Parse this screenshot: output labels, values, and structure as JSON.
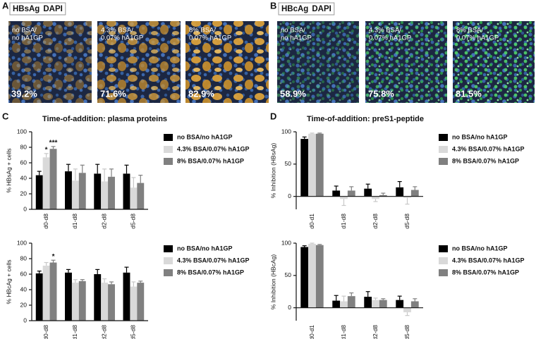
{
  "panel_labels": [
    "A",
    "B",
    "C",
    "D"
  ],
  "images": [
    {
      "stain": "HBsAg",
      "counterstain": "DAPI",
      "stain_color": "#d9822b",
      "counterstain_color": "#2f6db3",
      "fields": [
        {
          "condition": [
            "no BSA/",
            "no hA1GP"
          ],
          "percent": "39.2%"
        },
        {
          "condition": [
            "4.3% BSA/",
            "0.07% hA1GP"
          ],
          "percent": "71.6%"
        },
        {
          "condition": [
            "8% BSA/",
            "0.07% hA1GP"
          ],
          "percent": "82.9%"
        }
      ]
    },
    {
      "stain": "HBcAg",
      "counterstain": "DAPI",
      "stain_color": "#2ca54c",
      "counterstain_color": "#2f6db3",
      "fields": [
        {
          "condition": [
            "no BSA/",
            "no hA1GP"
          ],
          "percent": "58.9%"
        },
        {
          "condition": [
            "4.3% BSA/",
            "0.07% hA1GP"
          ],
          "percent": "75.8%"
        },
        {
          "condition": [
            "8% BSA/",
            "0.07% hA1GP"
          ],
          "percent": "81.5%"
        }
      ]
    }
  ],
  "chart_data": [
    {
      "type": "bar",
      "title": "Time-of-addition: plasma proteins",
      "ylabel": "% HBsAg + cells",
      "categories": [
        "d0-d8",
        "d1-d8",
        "d2-d8",
        "d5-d8"
      ],
      "ylim": [
        0,
        100
      ],
      "yticks": [
        0,
        20,
        40,
        60,
        80,
        100
      ],
      "series": [
        {
          "name": "no BSA/no hA1GP",
          "color": "#000000",
          "values": [
            44,
            49,
            46,
            46
          ],
          "errors": [
            5,
            9,
            12,
            11
          ]
        },
        {
          "name": "4.3% BSA/0.07% hA1GP",
          "color": "#d9d9d9",
          "values": [
            67,
            37,
            36,
            28
          ],
          "errors": [
            5,
            15,
            16,
            13
          ],
          "significance": [
            "*",
            null,
            null,
            null
          ]
        },
        {
          "name": "8% BSA/0.07% hA1GP",
          "color": "#808080",
          "values": [
            78,
            47,
            42,
            34
          ],
          "errors": [
            3,
            10,
            10,
            10
          ],
          "significance": [
            "***",
            null,
            null,
            null
          ]
        }
      ]
    },
    {
      "type": "bar",
      "ylabel": "% HBcAg + cells",
      "categories": [
        "d0-d8",
        "d1-d8",
        "d2-d8",
        "d5-d8"
      ],
      "ylim": [
        0,
        100
      ],
      "yticks": [
        0,
        20,
        40,
        60,
        80,
        100
      ],
      "series": [
        {
          "name": "no BSA/no hA1GP",
          "color": "#000000",
          "values": [
            61,
            62,
            60,
            62
          ],
          "errors": [
            3,
            4,
            6,
            7
          ]
        },
        {
          "name": "4.3% BSA/0.07% hA1GP",
          "color": "#d9d9d9",
          "values": [
            71,
            49,
            49,
            44
          ],
          "errors": [
            4,
            4,
            5,
            6
          ]
        },
        {
          "name": "8% BSA/0.07% hA1GP",
          "color": "#808080",
          "values": [
            75,
            51,
            47,
            49
          ],
          "errors": [
            3,
            2,
            3,
            2
          ],
          "significance": [
            "*",
            null,
            null,
            null
          ]
        }
      ]
    },
    {
      "type": "bar",
      "title": "Time-of-addition: preS1-peptide",
      "ylabel": "% Inhibition (HBsAg)",
      "categories": [
        "d0-d1",
        "d1-d8",
        "d2-d8",
        "d5-d8"
      ],
      "ylim": [
        -20,
        100
      ],
      "yticks": [
        0,
        50,
        100
      ],
      "series": [
        {
          "name": "no BSA/no hA1GP",
          "color": "#000000",
          "values": [
            89,
            9,
            12,
            14
          ],
          "errors": [
            3,
            7,
            7,
            9
          ]
        },
        {
          "name": "4.3% BSA/0.07% hA1GP",
          "color": "#d9d9d9",
          "values": [
            97,
            -4,
            -4,
            -2
          ],
          "errors": [
            1,
            10,
            4,
            10
          ]
        },
        {
          "name": "8% BSA/0.07% hA1GP",
          "color": "#808080",
          "values": [
            97,
            9,
            2,
            10
          ],
          "errors": [
            1,
            6,
            3,
            5
          ]
        }
      ]
    },
    {
      "type": "bar",
      "ylabel": "% Inhibition (HBcAg)",
      "categories": [
        "d0-d1",
        "d1-d8",
        "d2-d8",
        "d5-d8"
      ],
      "ylim": [
        -20,
        100
      ],
      "yticks": [
        0,
        50,
        100
      ],
      "series": [
        {
          "name": "no BSA/no hA1GP",
          "color": "#000000",
          "values": [
            94,
            11,
            17,
            12
          ],
          "errors": [
            2,
            8,
            8,
            6
          ]
        },
        {
          "name": "4.3% BSA/0.07% hA1GP",
          "color": "#d9d9d9",
          "values": [
            99,
            10,
            12,
            -7
          ],
          "errors": [
            1,
            8,
            3,
            5
          ]
        },
        {
          "name": "8% BSA/0.07% hA1GP",
          "color": "#808080",
          "values": [
            97,
            18,
            12,
            10
          ],
          "errors": [
            1,
            5,
            2,
            4
          ]
        }
      ]
    }
  ]
}
